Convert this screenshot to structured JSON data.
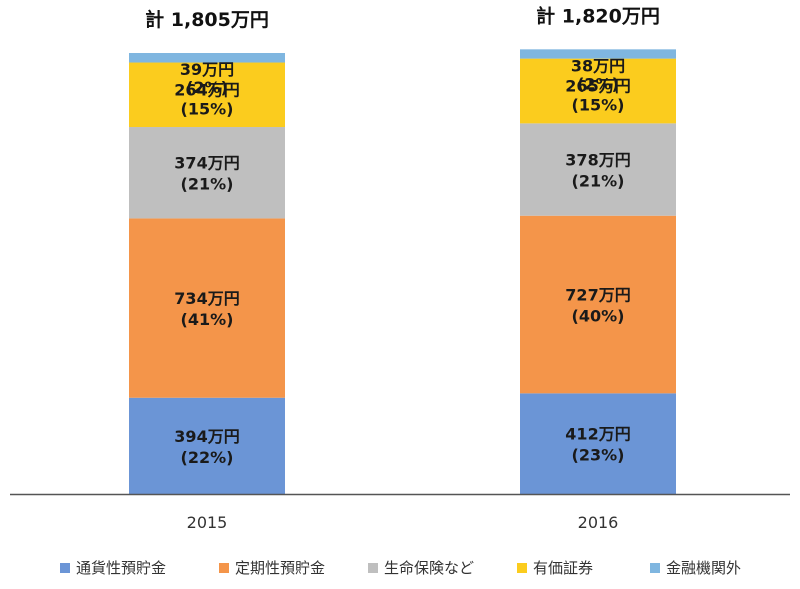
{
  "chart_data": {
    "type": "stacked-bar",
    "unit": "万円",
    "categories": [
      "2015",
      "2016"
    ],
    "totals": [
      {
        "value": 1805,
        "label": "計 1,805万円"
      },
      {
        "value": 1820,
        "label": "計 1,820万円"
      }
    ],
    "series": [
      {
        "name": "通貨性預貯金",
        "color": "#6b95d6",
        "values": [
          394,
          412
        ],
        "value_labels": [
          "394万円",
          "412万円"
        ],
        "pct_labels": [
          "(22%)",
          "(23%)"
        ]
      },
      {
        "name": "定期性預貯金",
        "color": "#f4954a",
        "values": [
          734,
          727
        ],
        "value_labels": [
          "734万円",
          "727万円"
        ],
        "pct_labels": [
          "(41%)",
          "(40%)"
        ]
      },
      {
        "name": "生命保険など",
        "color": "#bfbfbf",
        "values": [
          374,
          378
        ],
        "value_labels": [
          "374万円",
          "378万円"
        ],
        "pct_labels": [
          "(21%)",
          "(21%)"
        ]
      },
      {
        "name": "有価証券",
        "color": "#fbcc1e",
        "values": [
          264,
          265
        ],
        "value_labels": [
          "264万円",
          "265万円"
        ],
        "pct_labels": [
          "(15%)",
          "(15%)"
        ]
      },
      {
        "name": "金融機関外",
        "color": "#7fb6e0",
        "values": [
          39,
          38
        ],
        "value_labels": [
          "39万円",
          "38万円"
        ],
        "pct_labels": [
          "(2%)",
          "(2%)"
        ]
      }
    ],
    "ylim": [
      0,
      1805
    ],
    "legend_position": "bottom",
    "grid": false
  }
}
